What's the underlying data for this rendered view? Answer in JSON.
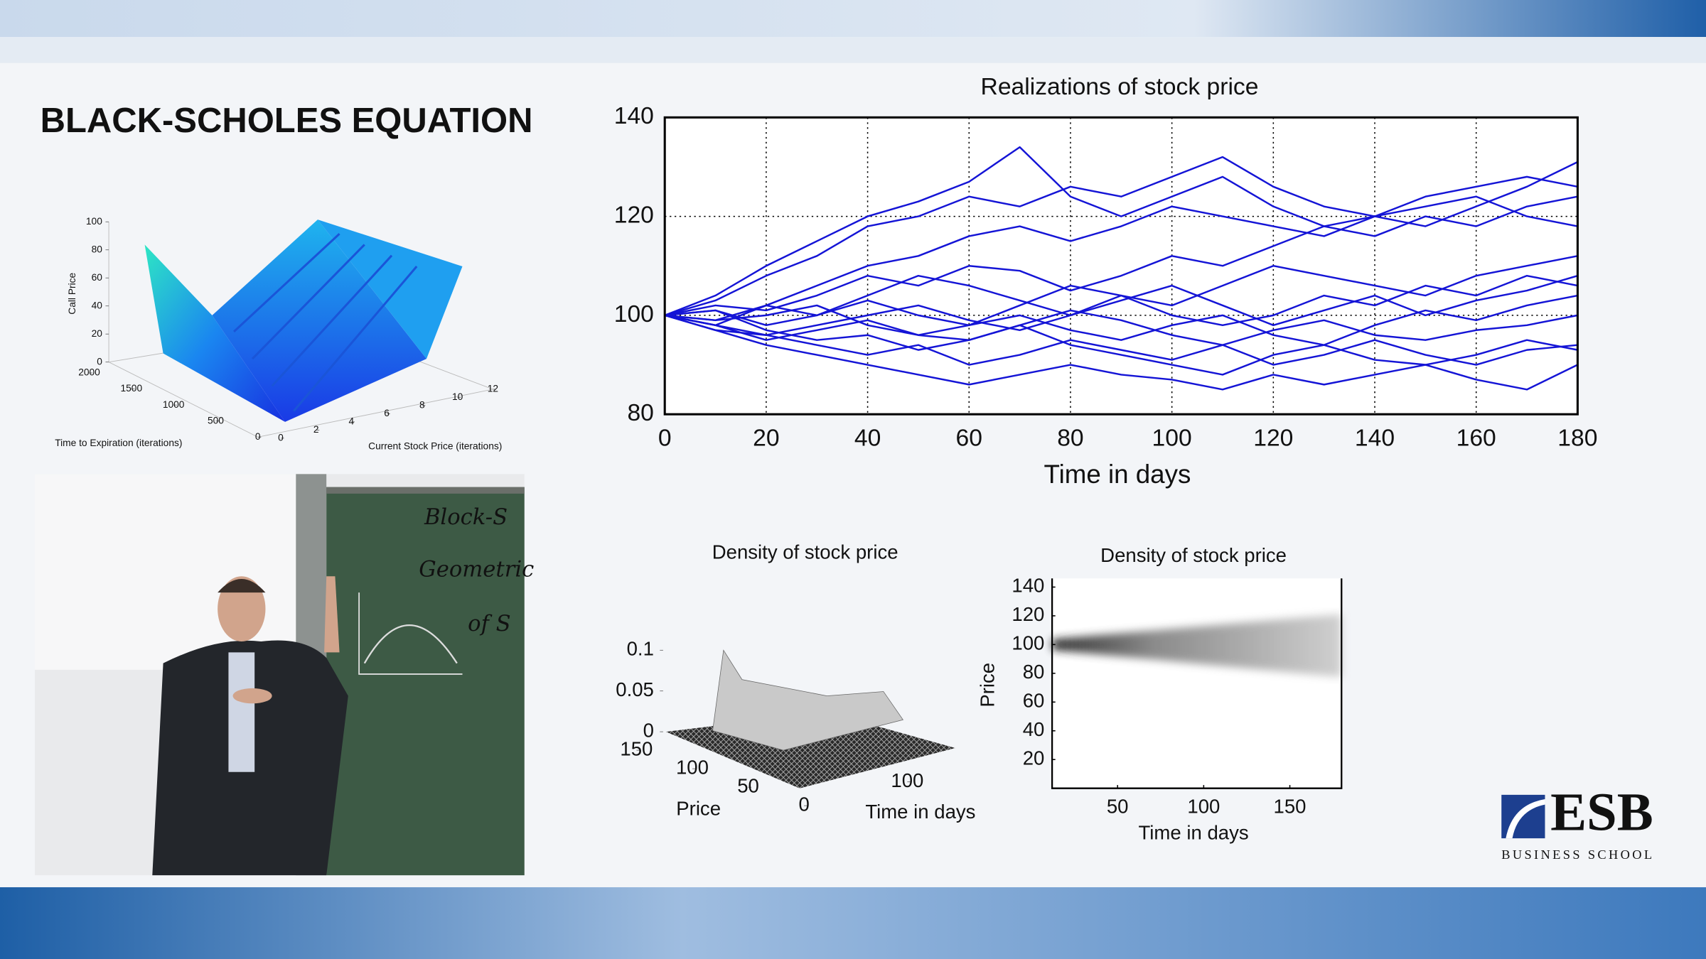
{
  "slide": {
    "title": "BLACK-SCHOLES EQUATION"
  },
  "chart_data": [
    {
      "type": "line",
      "title": "Realizations of stock price",
      "x_label": "Time in days",
      "x": [
        0,
        10,
        20,
        30,
        40,
        50,
        60,
        70,
        80,
        90,
        100,
        110,
        120,
        130,
        140,
        150,
        160,
        170,
        180
      ],
      "series": [
        {
          "color": "#1414d6",
          "values": [
            100,
            104,
            110,
            115,
            120,
            123,
            127,
            134,
            124,
            120,
            124,
            128,
            122,
            118,
            120,
            122,
            124,
            120,
            118
          ]
        },
        {
          "color": "#1414d6",
          "values": [
            100,
            103,
            108,
            112,
            118,
            120,
            124,
            122,
            126,
            124,
            128,
            132,
            126,
            122,
            120,
            118,
            122,
            126,
            131
          ]
        },
        {
          "color": "#1414d6",
          "values": [
            100,
            98,
            102,
            106,
            110,
            112,
            116,
            118,
            115,
            118,
            122,
            120,
            118,
            116,
            120,
            124,
            126,
            128,
            126
          ]
        },
        {
          "color": "#1414d6",
          "values": [
            100,
            102,
            101,
            104,
            108,
            106,
            110,
            109,
            105,
            108,
            112,
            110,
            114,
            118,
            116,
            120,
            118,
            122,
            124
          ]
        },
        {
          "color": "#1414d6",
          "values": [
            100,
            99,
            102,
            100,
            104,
            108,
            106,
            103,
            100,
            104,
            102,
            106,
            110,
            108,
            106,
            104,
            108,
            110,
            112
          ]
        },
        {
          "color": "#1414d6",
          "values": [
            100,
            101,
            98,
            100,
            103,
            100,
            98,
            102,
            106,
            104,
            100,
            98,
            100,
            104,
            102,
            106,
            104,
            108,
            106
          ]
        },
        {
          "color": "#1414d6",
          "values": [
            100,
            97,
            96,
            98,
            100,
            102,
            99,
            97,
            100,
            103,
            106,
            102,
            98,
            101,
            104,
            100,
            103,
            105,
            108
          ]
        },
        {
          "color": "#1414d6",
          "values": [
            100,
            98,
            95,
            97,
            99,
            96,
            98,
            100,
            97,
            95,
            98,
            100,
            96,
            94,
            98,
            101,
            99,
            102,
            104
          ]
        },
        {
          "color": "#1414d6",
          "values": [
            100,
            99,
            100,
            102,
            98,
            96,
            95,
            98,
            101,
            99,
            96,
            94,
            97,
            99,
            96,
            95,
            97,
            98,
            100
          ]
        },
        {
          "color": "#1414d6",
          "values": [
            100,
            98,
            96,
            94,
            92,
            94,
            90,
            92,
            95,
            93,
            91,
            94,
            90,
            92,
            95,
            92,
            90,
            93,
            94
          ]
        },
        {
          "color": "#1414d6",
          "values": [
            100,
            97,
            94,
            92,
            90,
            88,
            86,
            88,
            90,
            88,
            87,
            85,
            88,
            86,
            88,
            90,
            87,
            85,
            90
          ]
        },
        {
          "color": "#1414d6",
          "values": [
            100,
            101,
            97,
            95,
            96,
            93,
            95,
            98,
            94,
            92,
            90,
            88,
            92,
            94,
            91,
            90,
            92,
            95,
            93
          ]
        }
      ],
      "xlim": [
        0,
        180
      ],
      "ylim": [
        80,
        140
      ],
      "xticks": [
        0,
        20,
        40,
        60,
        80,
        100,
        120,
        140,
        160,
        180
      ],
      "yticks": [
        80,
        100,
        120,
        140
      ],
      "grid": true
    },
    {
      "type": "surface",
      "z_label": "Call Price",
      "x_label": "Time to Expiration (iterations)",
      "y_label": "Current Stock Price (iterations)",
      "xlim": [
        0,
        2000
      ],
      "xticks": [
        0,
        500,
        1000,
        1500,
        2000
      ],
      "ylim": [
        0,
        12
      ],
      "yticks": [
        0,
        2,
        4,
        6,
        8,
        10,
        12
      ],
      "zlim": [
        0,
        100
      ],
      "zticks": [
        0,
        20,
        40,
        60,
        80,
        100
      ]
    },
    {
      "type": "surface",
      "title": "Density of stock price",
      "x_label": "Time in days",
      "y_label": "Price",
      "xlim": [
        0,
        180
      ],
      "xticks": [
        100
      ],
      "ylim": [
        0,
        150
      ],
      "yticks": [
        0,
        50,
        100,
        150
      ],
      "zlim": [
        0,
        0.13
      ],
      "zticks": [
        0,
        0.05,
        0.1
      ]
    },
    {
      "type": "heatmap",
      "title": "Density of stock price",
      "x_label": "Time in days",
      "y_label": "Price",
      "xlim": [
        12,
        180
      ],
      "xticks": [
        50,
        100,
        150
      ],
      "ylim": [
        0,
        146
      ],
      "yticks": [
        20,
        40,
        60,
        80,
        100,
        120,
        140
      ]
    }
  ],
  "photo": {
    "board_lines": [
      "Block-S",
      "Geometric",
      "of S"
    ]
  },
  "logo": {
    "name": "ESB",
    "tagline": "BUSINESS SCHOOL"
  }
}
